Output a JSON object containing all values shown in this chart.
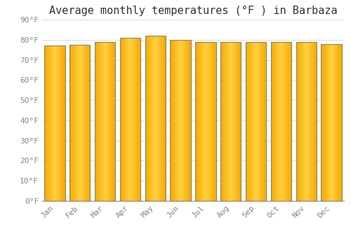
{
  "title": "Average monthly temperatures (°F ) in Barbaza",
  "months": [
    "Jan",
    "Feb",
    "Mar",
    "Apr",
    "May",
    "Jun",
    "Jul",
    "Aug",
    "Sep",
    "Oct",
    "Nov",
    "Dec"
  ],
  "values": [
    77,
    77.5,
    79,
    81,
    82,
    80,
    79,
    79,
    79,
    79,
    79,
    78
  ],
  "bar_color_center": "#FFD040",
  "bar_color_edge": "#F5A800",
  "bar_outline_color": "#888866",
  "background_color": "#ffffff",
  "plot_bg_color": "#ffffff",
  "ylim": [
    0,
    90
  ],
  "yticks": [
    0,
    10,
    20,
    30,
    40,
    50,
    60,
    70,
    80,
    90
  ],
  "ytick_labels": [
    "0°F",
    "10°F",
    "20°F",
    "30°F",
    "40°F",
    "50°F",
    "60°F",
    "70°F",
    "80°F",
    "90°F"
  ],
  "grid_color": "#dddddd",
  "title_fontsize": 11,
  "tick_fontsize": 8,
  "font_family": "monospace",
  "bar_width": 0.82
}
